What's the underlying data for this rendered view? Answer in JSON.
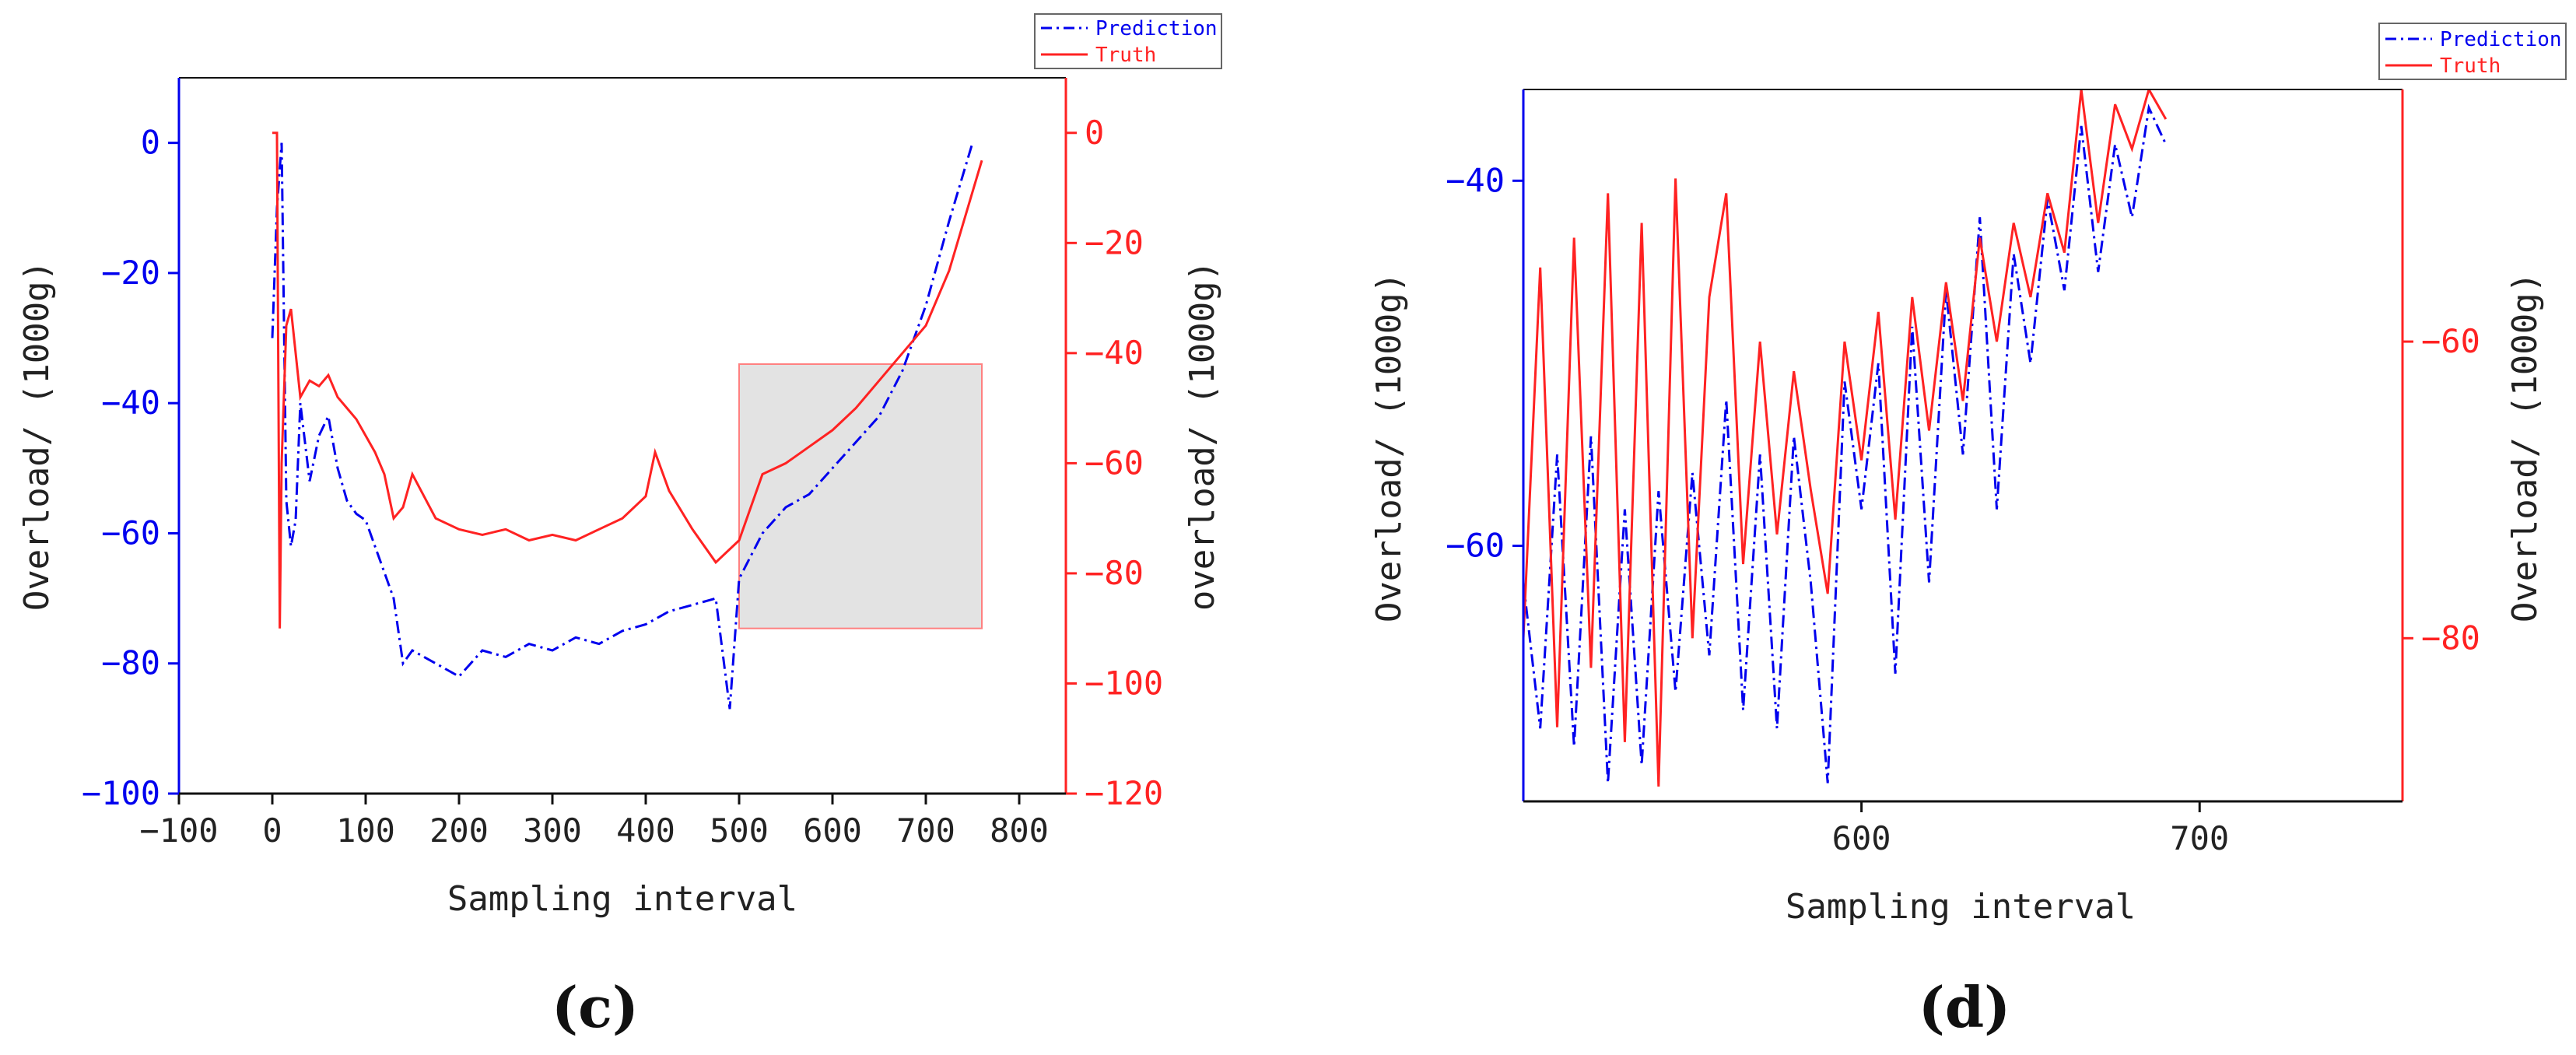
{
  "colors": {
    "prediction": "#0000ee",
    "truth": "#ff2222",
    "axis_left": "#0000ee",
    "axis_right": "#ff2222",
    "axis_bottom": "#111111",
    "highlight_fill": "#d9d9d9",
    "highlight_stroke": "#ff8080"
  },
  "legend": {
    "prediction_label": "Prediction",
    "truth_label": "Truth"
  },
  "chart_data": [
    {
      "panel": "(c)",
      "type": "line",
      "xlabel": "Sampling interval",
      "ylabel_left": "Overload/ (1000g)",
      "ylabel_right": "overload/ (1000g)",
      "xlim": [
        -100,
        850
      ],
      "ylim_left": [
        -100,
        10
      ],
      "ylim_right": [
        -120,
        10
      ],
      "xticks": [
        -100,
        0,
        100,
        200,
        300,
        400,
        500,
        600,
        700,
        800
      ],
      "xtick_labels": [
        "−100",
        "0",
        "100",
        "200",
        "300",
        "400",
        "500",
        "600",
        "700",
        "800"
      ],
      "yticks_left": [
        0,
        -20,
        -40,
        -60,
        -80,
        -100
      ],
      "ytick_labels_left": [
        "0",
        "−20",
        "−40",
        "−60",
        "−80",
        "−100"
      ],
      "yticks_right": [
        0,
        -20,
        -40,
        -60,
        -80,
        -100,
        -120
      ],
      "ytick_labels_right": [
        "0",
        "−20",
        "−40",
        "−60",
        "−80",
        "−100",
        "−120"
      ],
      "highlight_region": {
        "x": [
          500,
          760
        ],
        "y_right": [
          -90,
          -42
        ]
      },
      "series": [
        {
          "name": "Prediction",
          "axis": "left",
          "style": "dash-dot",
          "x": [
            0,
            5,
            10,
            15,
            20,
            25,
            30,
            40,
            50,
            60,
            70,
            80,
            90,
            100,
            110,
            120,
            130,
            140,
            150,
            175,
            200,
            225,
            250,
            275,
            300,
            325,
            350,
            375,
            400,
            425,
            450,
            475,
            490,
            500,
            525,
            550,
            575,
            600,
            625,
            650,
            675,
            700,
            725,
            750
          ],
          "y": [
            -30,
            -10,
            0,
            -55,
            -62,
            -58,
            -40,
            -52,
            -45,
            -42,
            -50,
            -55,
            -57,
            -58,
            -62,
            -66,
            -70,
            -80,
            -78,
            -80,
            -82,
            -78,
            -79,
            -77,
            -78,
            -76,
            -77,
            -75,
            -74,
            -72,
            -71,
            -70,
            -87,
            -67,
            -60,
            -56,
            -54,
            -50,
            -46,
            -42,
            -35,
            -25,
            -12,
            0
          ]
        },
        {
          "name": "Truth",
          "axis": "right",
          "style": "solid",
          "x": [
            0,
            5,
            8,
            10,
            15,
            20,
            25,
            30,
            40,
            50,
            60,
            70,
            80,
            90,
            100,
            110,
            120,
            130,
            140,
            150,
            175,
            200,
            225,
            250,
            275,
            300,
            325,
            350,
            375,
            400,
            410,
            425,
            450,
            475,
            500,
            525,
            550,
            575,
            600,
            625,
            650,
            675,
            700,
            725,
            760
          ],
          "y": [
            0,
            0,
            -90,
            -60,
            -35,
            -32,
            -40,
            -48,
            -45,
            -46,
            -44,
            -48,
            -50,
            -52,
            -55,
            -58,
            -62,
            -70,
            -68,
            -62,
            -70,
            -72,
            -73,
            -72,
            -74,
            -73,
            -74,
            -72,
            -70,
            -66,
            -58,
            -65,
            -72,
            -78,
            -74,
            -62,
            -60,
            -57,
            -54,
            -50,
            -45,
            -40,
            -35,
            -25,
            -5
          ]
        }
      ]
    },
    {
      "panel": "(d)",
      "type": "line",
      "xlabel": "Sampling interval",
      "ylabel_left": "Overload/ (1000g)",
      "ylabel_right": "Overload/ (1000g)",
      "xlim": [
        500,
        760
      ],
      "ylim_left": [
        -74,
        -35
      ],
      "ylim_right": [
        -91,
        -43
      ],
      "xticks": [
        600,
        700
      ],
      "xtick_labels": [
        "600",
        "700"
      ],
      "yticks_left": [
        -40,
        -60
      ],
      "ytick_labels_left": [
        "−40",
        "−60"
      ],
      "yticks_right": [
        -60,
        -80
      ],
      "ytick_labels_right": [
        "−60",
        "−80"
      ],
      "series": [
        {
          "name": "Prediction",
          "axis": "left",
          "style": "dash-dot",
          "x": [
            500,
            505,
            510,
            515,
            520,
            525,
            530,
            535,
            540,
            545,
            550,
            555,
            560,
            565,
            570,
            575,
            580,
            585,
            590,
            595,
            600,
            605,
            610,
            615,
            620,
            625,
            630,
            635,
            640,
            645,
            650,
            655,
            660,
            665,
            670,
            675,
            680,
            685,
            690
          ],
          "y": [
            -62,
            -70,
            -55,
            -71,
            -54,
            -73,
            -58,
            -72,
            -57,
            -68,
            -56,
            -66,
            -52,
            -69,
            -55,
            -70,
            -54,
            -62,
            -73,
            -51,
            -58,
            -50,
            -67,
            -48,
            -62,
            -46,
            -55,
            -42,
            -58,
            -44,
            -50,
            -41,
            -46,
            -37,
            -45,
            -38,
            -42,
            -36,
            -38
          ]
        },
        {
          "name": "Truth",
          "axis": "right",
          "style": "solid",
          "x": [
            500,
            505,
            510,
            515,
            520,
            525,
            530,
            535,
            540,
            545,
            550,
            555,
            560,
            565,
            570,
            575,
            580,
            585,
            590,
            595,
            600,
            605,
            610,
            615,
            620,
            625,
            630,
            635,
            640,
            645,
            650,
            655,
            660,
            665,
            670,
            675,
            680,
            685,
            690
          ],
          "y": [
            -80,
            -55,
            -86,
            -53,
            -82,
            -50,
            -87,
            -52,
            -90,
            -49,
            -80,
            -57,
            -50,
            -75,
            -60,
            -73,
            -62,
            -70,
            -77,
            -60,
            -68,
            -58,
            -72,
            -57,
            -66,
            -56,
            -64,
            -53,
            -60,
            -52,
            -57,
            -50,
            -54,
            -43,
            -52,
            -44,
            -47,
            -43,
            -45
          ]
        }
      ]
    }
  ]
}
